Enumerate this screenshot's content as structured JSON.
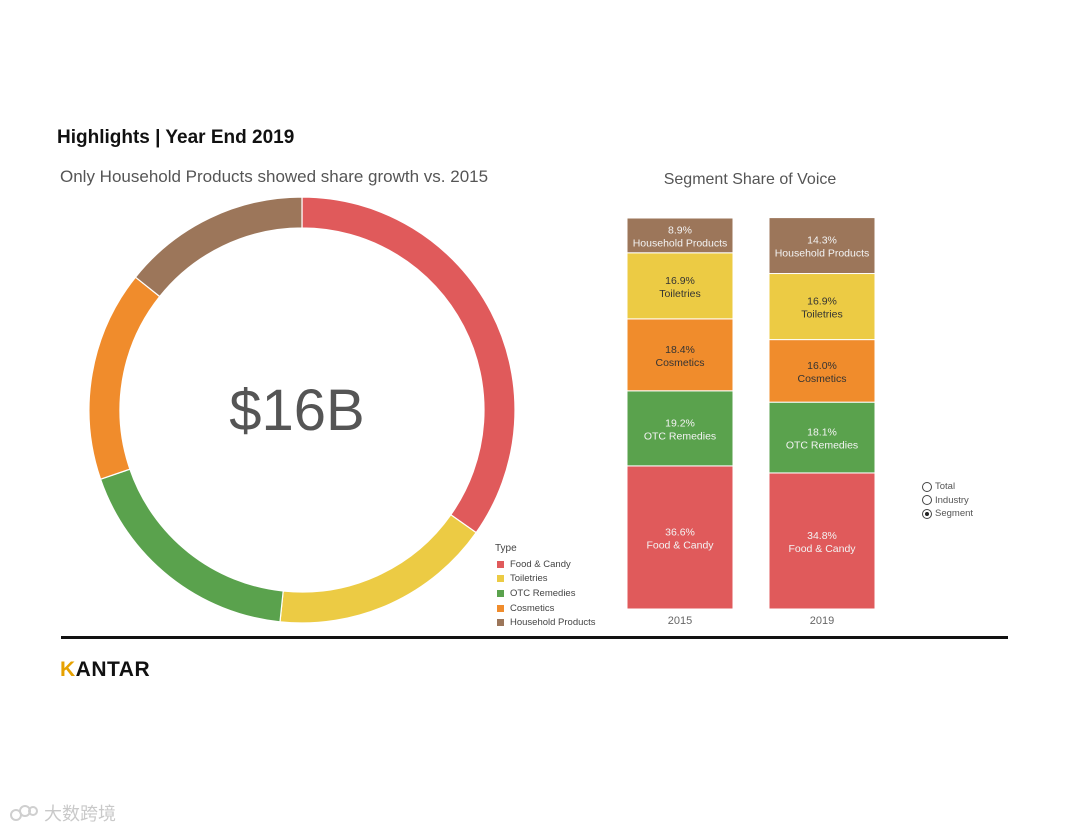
{
  "header": {
    "title": "Highlights | Year End 2019"
  },
  "donut": {
    "subtitle": "Only Household Products showed share growth vs. 2015",
    "center_label": "$16B"
  },
  "bars": {
    "title": "Segment Share of Voice"
  },
  "legend": {
    "title": "Type",
    "items": [
      "Food & Candy",
      "Toiletries",
      "OTC Remedies",
      "Cosmetics",
      "Household Products"
    ]
  },
  "colors": {
    "Food & Candy": "#e05a5b",
    "Toiletries": "#eccb44",
    "OTC Remedies": "#5aa24d",
    "Cosmetics": "#f08c2c",
    "Household Products": "#9c765a"
  },
  "filter": {
    "options": [
      "Total",
      "Industry",
      "Segment"
    ],
    "selected": "Segment"
  },
  "footer": {
    "brand": "KANTAR"
  },
  "watermark": {
    "text": "大数跨境"
  },
  "chart_data": [
    {
      "type": "pie",
      "title": "Only Household Products showed share growth vs. 2015",
      "center_text": "$16B",
      "categories": [
        "Food & Candy",
        "Toiletries",
        "OTC Remedies",
        "Cosmetics",
        "Household Products"
      ],
      "values": [
        34.8,
        16.9,
        18.1,
        16.0,
        14.3
      ],
      "start_at": "top, clockwise",
      "hole": "donut"
    },
    {
      "type": "bar",
      "stacked": true,
      "title": "Segment Share of Voice",
      "categories": [
        "2015",
        "2019"
      ],
      "stack_order": "bottom-to-top",
      "series": [
        {
          "name": "Food & Candy",
          "values": [
            36.6,
            34.8
          ],
          "labels": [
            "36.6%",
            "34.8%"
          ]
        },
        {
          "name": "OTC Remedies",
          "values": [
            19.2,
            18.1
          ],
          "labels": [
            "19.2%",
            "18.1%"
          ]
        },
        {
          "name": "Cosmetics",
          "values": [
            18.4,
            16.0
          ],
          "labels": [
            "18.4%",
            "16.0%"
          ]
        },
        {
          "name": "Toiletries",
          "values": [
            16.9,
            16.9
          ],
          "labels": [
            "16.9%",
            "16.9%"
          ]
        },
        {
          "name": "Household Products",
          "values": [
            8.9,
            14.3
          ],
          "labels": [
            "8.9%",
            "14.3%"
          ]
        }
      ],
      "ylim": [
        0,
        100
      ],
      "legend": "bottom-left"
    }
  ]
}
